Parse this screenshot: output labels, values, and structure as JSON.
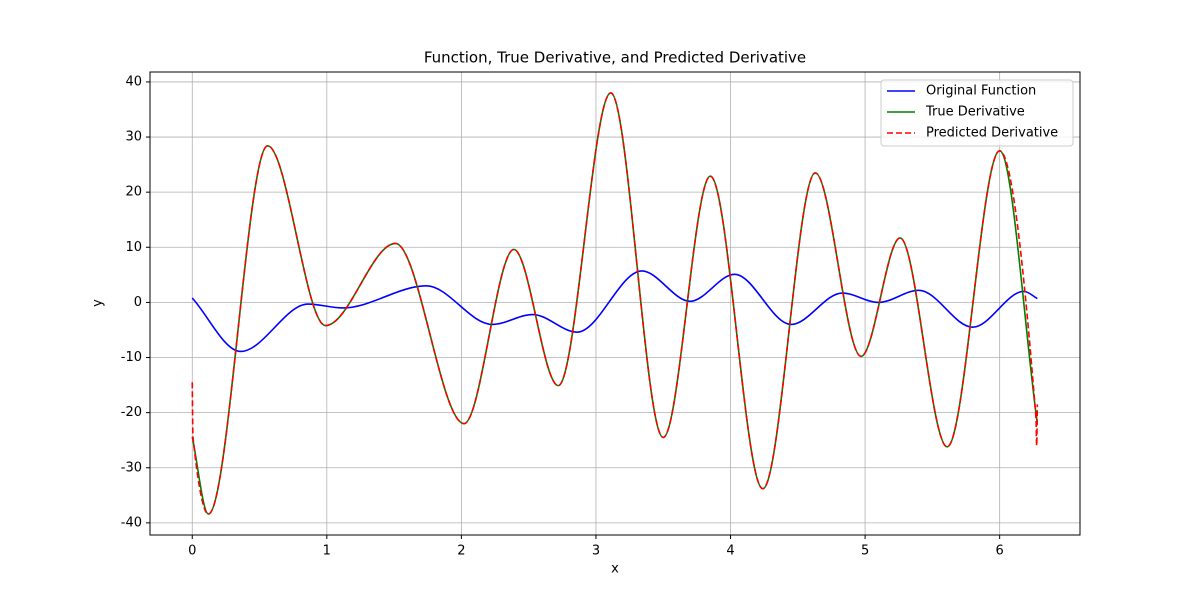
{
  "chart_data": {
    "type": "line",
    "title": "Function, True Derivative, and Predicted Derivative",
    "xlabel": "x",
    "ylabel": "y",
    "xlim": [
      -0.314,
      6.597
    ],
    "ylim": [
      -42.2,
      41.8
    ],
    "xticks": [
      0,
      1,
      2,
      3,
      4,
      5,
      6
    ],
    "yticks": [
      -40,
      -30,
      -20,
      -10,
      0,
      10,
      20,
      30,
      40
    ],
    "grid": true,
    "legend": "upper right",
    "series": [
      {
        "name": "Original Function",
        "color": "#0000ff",
        "dash": "solid",
        "x": [
          0,
          0.36,
          0.86,
          1.12,
          1.74,
          2.23,
          2.53,
          2.86,
          3.34,
          3.7,
          4.03,
          4.45,
          4.83,
          5.1,
          5.4,
          5.8,
          6.18,
          6.28
        ],
        "values": [
          0.8,
          -8.9,
          -0.3,
          -1.0,
          3.0,
          -4.0,
          -2.2,
          -5.4,
          5.7,
          0.2,
          5.1,
          -4.0,
          1.7,
          0.0,
          2.2,
          -4.5,
          2.0,
          0.7
        ]
      },
      {
        "name": "True Derivative",
        "color": "#008000",
        "dash": "solid",
        "x": [
          0,
          0.12,
          0.56,
          0.99,
          1.51,
          2.02,
          2.39,
          2.72,
          3.11,
          3.5,
          3.85,
          4.24,
          4.63,
          4.97,
          5.26,
          5.61,
          6.0,
          6.28
        ],
        "values": [
          -24.4,
          -38.4,
          28.4,
          -4.2,
          10.7,
          -22.0,
          9.6,
          -15.1,
          38.0,
          -24.5,
          22.9,
          -33.8,
          23.5,
          -9.8,
          11.7,
          -26.2,
          27.5,
          -22.0
        ]
      },
      {
        "name": "Predicted Derivative",
        "color": "#ff0000",
        "dash": "dashed",
        "x": [
          0,
          0.005,
          0.12,
          0.56,
          0.99,
          1.51,
          2.02,
          2.39,
          2.72,
          3.11,
          3.5,
          3.85,
          4.24,
          4.63,
          4.97,
          5.26,
          5.61,
          6.0,
          6.27,
          6.275,
          6.28
        ],
        "values": [
          -14.5,
          -24.4,
          -38.4,
          28.4,
          -4.2,
          10.7,
          -22.0,
          9.6,
          -15.1,
          38.0,
          -24.5,
          22.9,
          -33.8,
          23.5,
          -9.8,
          11.7,
          -26.2,
          27.5,
          -21.0,
          -26.0,
          -18.5
        ]
      }
    ]
  }
}
